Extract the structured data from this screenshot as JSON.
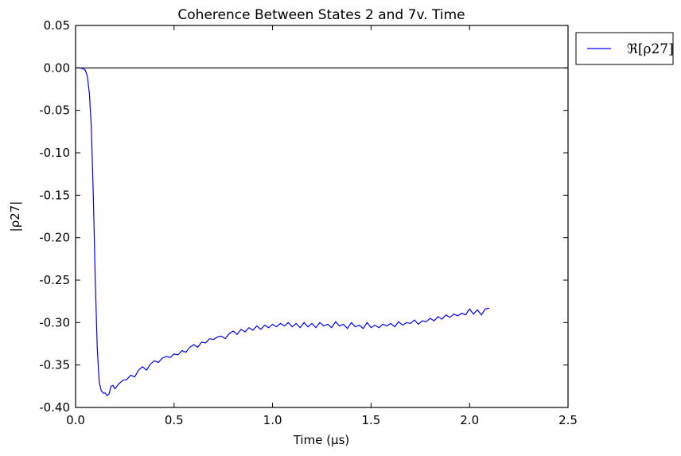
{
  "chart_data": {
    "type": "line",
    "title": "Coherence Between States 2 and 7v. Time",
    "xlabel": "Time (μs)",
    "ylabel": "|ρ27|",
    "xlim": [
      0.0,
      2.5
    ],
    "ylim": [
      -0.4,
      0.05
    ],
    "xticks": [
      "0.0",
      "0.5",
      "1.0",
      "1.5",
      "2.0",
      "2.5"
    ],
    "yticks": [
      "0.05",
      "0.00",
      "-0.05",
      "-0.10",
      "-0.15",
      "-0.20",
      "-0.25",
      "-0.30",
      "-0.35",
      "-0.40"
    ],
    "grid": false,
    "legend_position": "outside-top-right",
    "reference_line_y": 0.0,
    "series": [
      {
        "name": "ℜ[ρ27]",
        "color": "#0000ff",
        "x": [
          0.0,
          0.02,
          0.04,
          0.05,
          0.06,
          0.07,
          0.08,
          0.09,
          0.1,
          0.11,
          0.12,
          0.13,
          0.14,
          0.15,
          0.16,
          0.17,
          0.18,
          0.19,
          0.2,
          0.22,
          0.24,
          0.26,
          0.28,
          0.3,
          0.32,
          0.34,
          0.36,
          0.38,
          0.4,
          0.42,
          0.44,
          0.46,
          0.48,
          0.5,
          0.52,
          0.54,
          0.56,
          0.58,
          0.6,
          0.62,
          0.64,
          0.66,
          0.68,
          0.7,
          0.72,
          0.74,
          0.76,
          0.78,
          0.8,
          0.82,
          0.84,
          0.86,
          0.88,
          0.9,
          0.92,
          0.94,
          0.96,
          0.98,
          1.0,
          1.02,
          1.04,
          1.06,
          1.08,
          1.1,
          1.12,
          1.14,
          1.16,
          1.18,
          1.2,
          1.22,
          1.24,
          1.26,
          1.28,
          1.3,
          1.32,
          1.34,
          1.36,
          1.38,
          1.4,
          1.42,
          1.44,
          1.46,
          1.48,
          1.5,
          1.52,
          1.54,
          1.56,
          1.58,
          1.6,
          1.62,
          1.64,
          1.66,
          1.68,
          1.7,
          1.72,
          1.74,
          1.76,
          1.78,
          1.8,
          1.82,
          1.84,
          1.86,
          1.88,
          1.9,
          1.92,
          1.94,
          1.96,
          1.98,
          2.0,
          2.02,
          2.04,
          2.06,
          2.08,
          2.1
        ],
        "y": [
          0.0,
          0.0,
          -0.001,
          -0.003,
          -0.01,
          -0.03,
          -0.07,
          -0.15,
          -0.25,
          -0.33,
          -0.37,
          -0.38,
          -0.383,
          -0.383,
          -0.386,
          -0.384,
          -0.375,
          -0.374,
          -0.378,
          -0.372,
          -0.368,
          -0.367,
          -0.362,
          -0.364,
          -0.356,
          -0.352,
          -0.356,
          -0.349,
          -0.345,
          -0.347,
          -0.342,
          -0.34,
          -0.341,
          -0.337,
          -0.338,
          -0.333,
          -0.335,
          -0.329,
          -0.326,
          -0.329,
          -0.323,
          -0.324,
          -0.319,
          -0.32,
          -0.317,
          -0.316,
          -0.319,
          -0.313,
          -0.31,
          -0.314,
          -0.308,
          -0.311,
          -0.306,
          -0.309,
          -0.304,
          -0.308,
          -0.303,
          -0.306,
          -0.302,
          -0.305,
          -0.301,
          -0.304,
          -0.3,
          -0.305,
          -0.301,
          -0.306,
          -0.3,
          -0.305,
          -0.301,
          -0.306,
          -0.3,
          -0.304,
          -0.302,
          -0.306,
          -0.299,
          -0.304,
          -0.302,
          -0.307,
          -0.3,
          -0.305,
          -0.303,
          -0.307,
          -0.3,
          -0.306,
          -0.303,
          -0.306,
          -0.302,
          -0.304,
          -0.301,
          -0.305,
          -0.299,
          -0.303,
          -0.3,
          -0.301,
          -0.297,
          -0.302,
          -0.298,
          -0.299,
          -0.295,
          -0.298,
          -0.293,
          -0.296,
          -0.291,
          -0.294,
          -0.29,
          -0.292,
          -0.289,
          -0.291,
          -0.284,
          -0.29,
          -0.285,
          -0.291,
          -0.284,
          -0.283
        ]
      }
    ]
  }
}
